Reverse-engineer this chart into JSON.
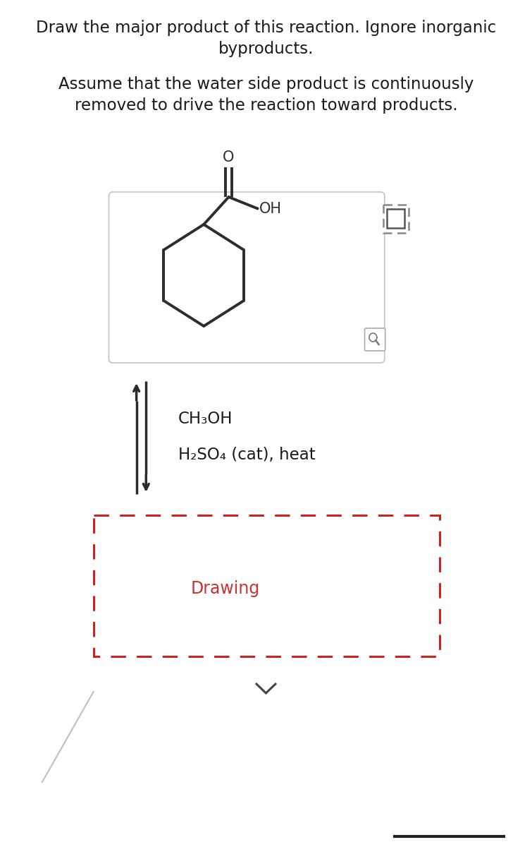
{
  "title_line1": "Draw the major product of this reaction. Ignore inorganic",
  "title_line2": "byproducts.",
  "subtitle_line1": "Assume that the water side product is continuously",
  "subtitle_line2": "removed to drive the reaction toward products.",
  "reagent1": "CH₃OH",
  "reagent2": "H₂SO₄ (cat), heat",
  "drawing_label": "Drawing",
  "bg_color": "#ffffff",
  "text_color": "#1a1a1a",
  "molecule_color": "#2d2d2d",
  "box_border_color": "#c8c8c8",
  "drawing_border_color": "#cc2222",
  "drawing_text_color": "#cc3333",
  "arrow_color": "#2a2a2a",
  "icon_color": "#888888",
  "diag_line_color": "#c0c0c0",
  "bottom_line_color": "#222222"
}
